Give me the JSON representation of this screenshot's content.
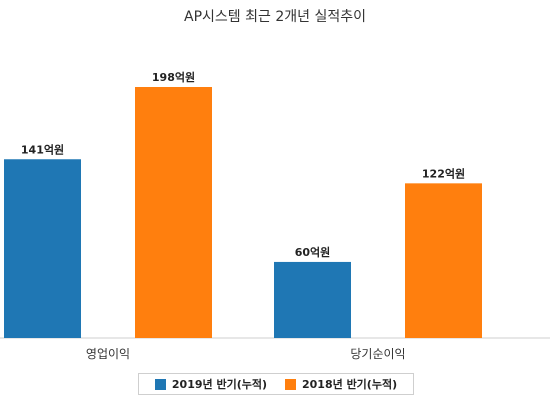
{
  "chart_data": {
    "type": "bar",
    "title": "AP시스템 최근 2개년 실적추이",
    "categories": [
      "영업이익",
      "당기순이익"
    ],
    "series": [
      {
        "name": "2019년 반기(누적)",
        "values": [
          141,
          60
        ],
        "labels": [
          "141억원",
          "60억원"
        ],
        "color": "#1f77b4"
      },
      {
        "name": "2018년 반기(누적)",
        "values": [
          198,
          122
        ],
        "labels": [
          "198억원",
          "122억원"
        ],
        "color": "#ff7f0e"
      }
    ],
    "ylim": [
      0,
      198
    ],
    "grid": false,
    "legend_position": "bottom"
  }
}
